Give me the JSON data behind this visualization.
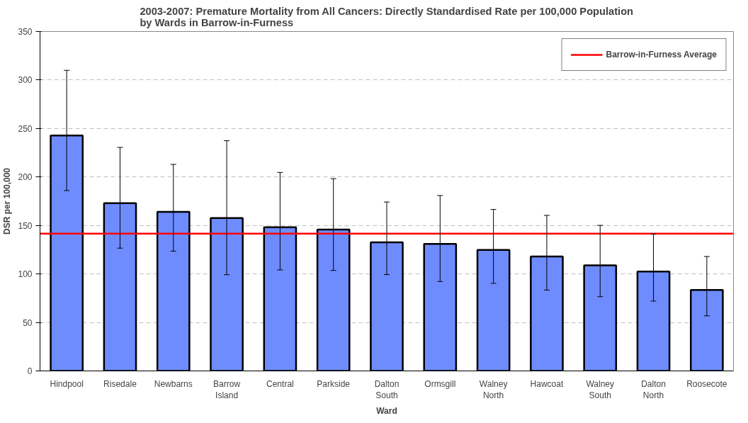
{
  "chart_data": {
    "type": "bar",
    "title": "2003-2007: Premature Mortality from All Cancers: Directly Standardised Rate per 100,000 Population\nby Wards in Barrow-in-Furness",
    "xlabel": "Ward",
    "ylabel": "DSR per 100,000",
    "categories": [
      "Hindpool",
      "Risedale",
      "Newbarns",
      "Barrow Island",
      "Central",
      "Parkside",
      "Dalton South",
      "Ormsgill",
      "Walney North",
      "Hawcoat",
      "Walney South",
      "Dalton North",
      "Roosecote"
    ],
    "values": [
      242.7,
      172.9,
      164,
      157.6,
      148.2,
      145.7,
      132.7,
      131,
      124.7,
      118,
      108.9,
      102.5,
      83.4
    ],
    "errors": [
      [
        186,
        310
      ],
      [
        126.6,
        230.5
      ],
      [
        123.5,
        213
      ],
      [
        99.2,
        237.4
      ],
      [
        104.2,
        204.7
      ],
      [
        103.6,
        198.3
      ],
      [
        99.4,
        174.2
      ],
      [
        92.2,
        180.9
      ],
      [
        90.3,
        166.5
      ],
      [
        83.4,
        160.4
      ],
      [
        76.5,
        150.1
      ],
      [
        72,
        141.3
      ],
      [
        56.8,
        118
      ]
    ],
    "color": "#6f8cff",
    "ylim": [
      0,
      350
    ],
    "yticks": [
      0,
      50,
      100,
      150,
      200,
      250,
      300,
      350
    ],
    "grid": "y",
    "ref_lines": [
      {
        "axis": "y",
        "value": 141.6,
        "label": "Barrow-in-Furness Average",
        "color": "#ff0000"
      }
    ],
    "legend": "top right"
  }
}
